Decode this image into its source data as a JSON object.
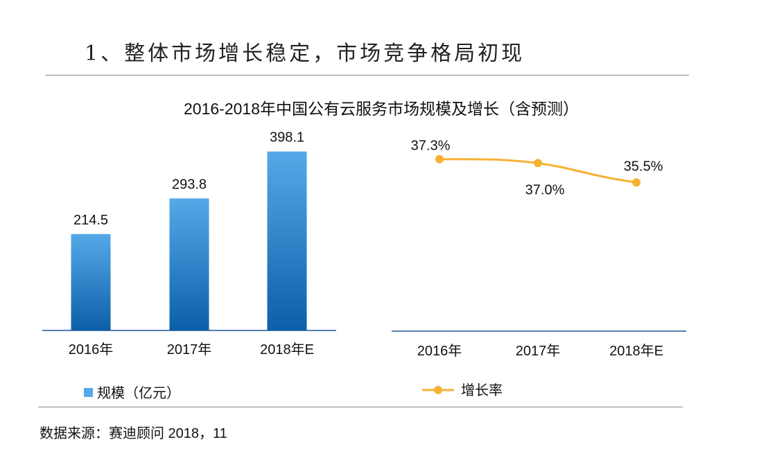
{
  "heading": "1、整体市场增长稳定，市场竞争格局初现",
  "source": "数据来源：赛迪顾问  2018，11",
  "chart_data": [
    {
      "type": "bar",
      "title": "2016-2018年中国公有云服务市场规模及增长（含预测）",
      "categories": [
        "2016年",
        "2017年",
        "2018年E"
      ],
      "series": [
        {
          "name": "规模（亿元）",
          "values": [
            214.5,
            293.8,
            398.1
          ],
          "labels": [
            "214.5",
            "293.8",
            "398.1"
          ],
          "color_top": "#56a9e8",
          "color_bottom": "#0b5fa8"
        }
      ],
      "ylim": [
        0,
        430
      ],
      "legend": "bottom-left",
      "grid": false
    },
    {
      "type": "line",
      "categories": [
        "2016年",
        "2017年",
        "2018年E"
      ],
      "series": [
        {
          "name": "增长率",
          "values": [
            37.3,
            37.0,
            35.5
          ],
          "labels": [
            "37.3%",
            "37.0%",
            "35.5%"
          ],
          "color": "#f6b133"
        }
      ],
      "ylim": [
        24,
        39
      ],
      "legend": "bottom-left",
      "grid": false
    }
  ]
}
